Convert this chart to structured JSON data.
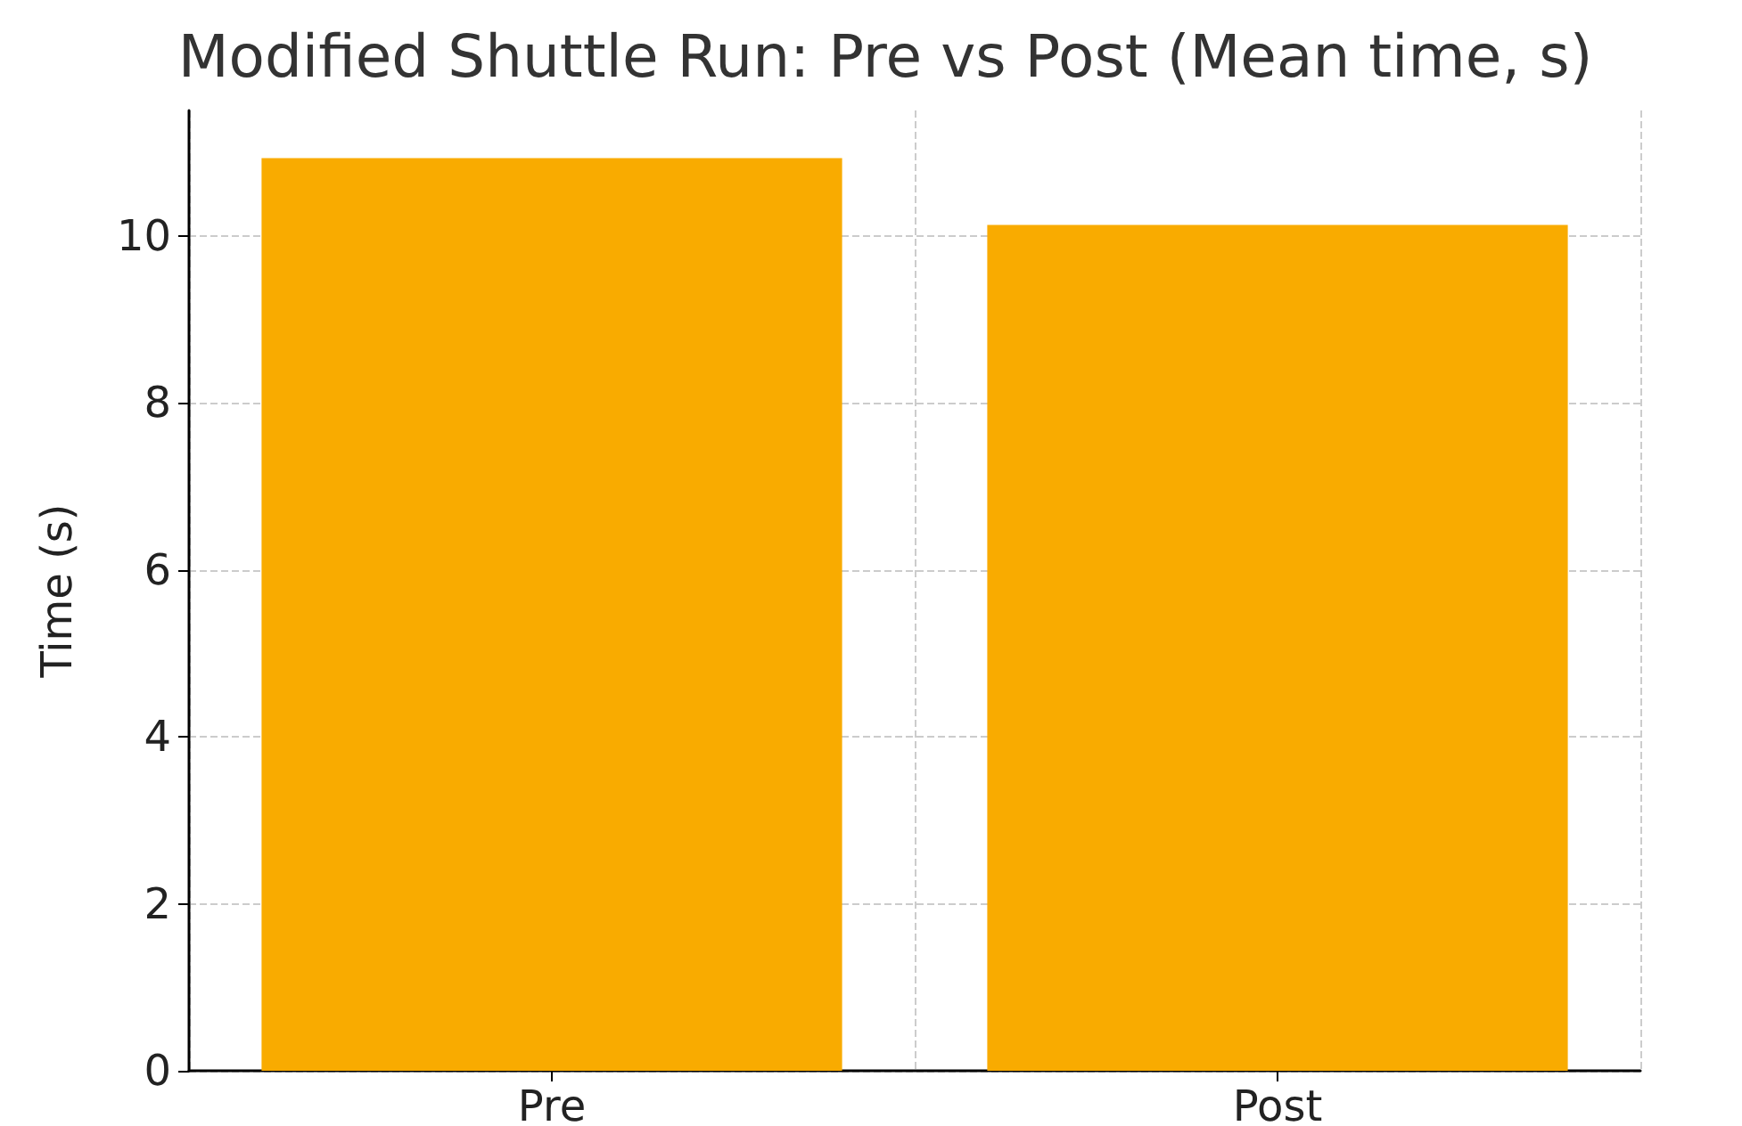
{
  "chart_data": {
    "type": "bar",
    "title": "Modified Shuttle Run: Pre vs Post (Mean time, s)",
    "ylabel": "Time (s)",
    "categories": [
      "Pre",
      "Post"
    ],
    "values": [
      10.93,
      10.13
    ],
    "color": "#f9ab00",
    "ylim": [
      0,
      11.5
    ],
    "yticks": [
      0,
      2,
      4,
      6,
      8,
      10
    ],
    "grid": true
  }
}
